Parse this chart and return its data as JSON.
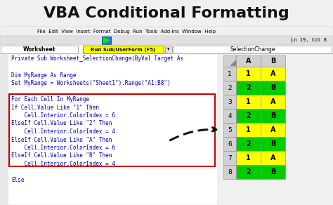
{
  "title": "VBA Conditional Formatting",
  "title_fontsize": 16,
  "title_fontweight": "bold",
  "bg_color": "#f0f0f0",
  "menu_items": "File  Edit  View  Insert  Format  Debug  Run  Tools  Add-Ins  Window  Help",
  "toolbar_text": "Ln 19, Col 8",
  "worksheet_label": "Worksheet",
  "run_sub_label": "Run Sub/UserForm (F5)",
  "selection_label": "SelectionChange",
  "code_line1": "Private Sub Worksheet_SelectionChange(ByVal Target As",
  "code_line2": "Dim MyRange As Range",
  "code_line3": "Set MyRange = Worksheets(\"Sheet1\").Range(\"A1:B8\")",
  "box_lines": [
    "For Each Cell In MyRange",
    "If Cell.Value Like \"1\" Then",
    "    Cell.Interior.ColorIndex = 6",
    "ElseIf Cell.Value Like \"2\" Then",
    "    Cell.Interior.ColorIndex = 4",
    "ElseIf Cell.Value Like \"A\" Then",
    "    Cell.Interior.ColorIndex = 6",
    "ElseIf Cell.Value Like \"B\" Then",
    "    Cell.Interior.ColorIndex = 4"
  ],
  "code_else": "Else",
  "code_color": "#0000bb",
  "yellow": "#FFFF00",
  "green": "#00CC00",
  "grid_header_bg": "#D0D0D0",
  "grid_row_bg": "#E8E8E8",
  "red_box_color": "#cc0000",
  "vbe_bg": "#ffffff",
  "menu_bg": "#f0f0f0",
  "run_sub_bg": "#FFFF00",
  "toolbar_bg": "#e0e0e0",
  "combo_bg": "#ffffff",
  "grid_col_a": [
    1,
    2,
    1,
    2,
    1,
    2,
    1,
    2
  ],
  "grid_col_b": [
    "A",
    "B",
    "A",
    "B",
    "A",
    "B",
    "A",
    "B"
  ]
}
